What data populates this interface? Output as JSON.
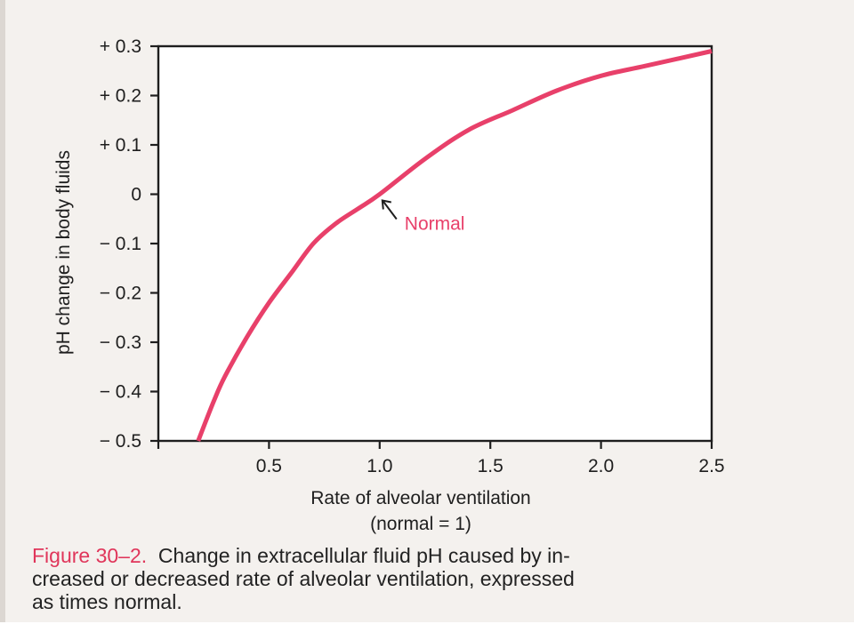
{
  "chart_data": {
    "type": "line",
    "xlabel": "Rate of alveolar ventilation",
    "xlabel_sub": "(normal = 1)",
    "ylabel": "pH change in body fluids",
    "xlim": [
      0,
      2.5
    ],
    "ylim": [
      -0.5,
      0.3
    ],
    "x_ticks": [
      0,
      0.5,
      1.0,
      1.5,
      2.0,
      2.5
    ],
    "x_tick_labels": [
      "",
      "0.5",
      "1.0",
      "1.5",
      "2.0",
      "2.5"
    ],
    "y_ticks": [
      0.3,
      0.2,
      0.1,
      0,
      -0.1,
      -0.2,
      -0.3,
      -0.4,
      -0.5
    ],
    "y_tick_labels": [
      "+ 0.3",
      "+ 0.2",
      "+ 0.1",
      "0",
      "− 0.1",
      "− 0.2",
      "− 0.3",
      "− 0.4",
      "− 0.5"
    ],
    "grid": false,
    "line_color": "#e8406a",
    "series": [
      {
        "x": [
          0.18,
          0.25,
          0.3,
          0.4,
          0.5,
          0.6,
          0.7,
          0.8,
          0.9,
          1.0,
          1.2,
          1.4,
          1.6,
          1.8,
          2.0,
          2.2,
          2.5
        ],
        "y": [
          -0.5,
          -0.42,
          -0.37,
          -0.29,
          -0.22,
          -0.16,
          -0.1,
          -0.06,
          -0.03,
          0.0,
          0.07,
          0.13,
          0.17,
          0.21,
          0.24,
          0.26,
          0.29
        ]
      }
    ],
    "annotations": [
      {
        "text": "Normal",
        "x": 1.0,
        "y": 0.0,
        "color": "#e8406a"
      }
    ]
  },
  "caption": {
    "label": "Figure 30–2.",
    "line1": "Change in extracellular fluid pH caused by in-",
    "line2": "creased or decreased rate of alveolar ventilation, expressed",
    "line3": "as times normal."
  }
}
